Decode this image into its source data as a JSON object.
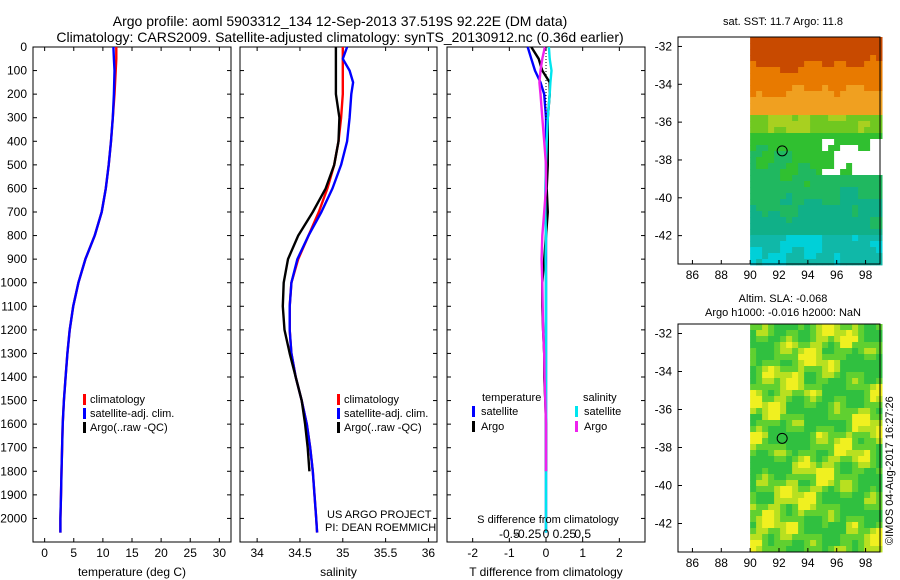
{
  "header": {
    "title_line1": "Argo profile: aoml 5903312_134 12-Sep-2013 37.519S 92.22E (DM data)",
    "title_line2": "Climatology: CARS2009. Satellite-adjusted climatology: synTS_20130912.nc (0.36d earlier)"
  },
  "colors": {
    "climatology": "#ff0000",
    "satellite": "#0000ff",
    "argo": "#000000",
    "salinity_satellite": "#00e5ee",
    "salinity_argo": "#ee22ee"
  },
  "footer": {
    "project": "US ARGO PROJECT",
    "pi": "PI: DEAN ROEMMICH",
    "imos_stamp": "©IMOS 04-Aug-2017 16:27:26"
  },
  "chart_data": [
    {
      "type": "line",
      "id": "temperature",
      "xlabel": "temperature (deg C)",
      "ylabel": "",
      "xlim": [
        -2,
        32
      ],
      "ylim": [
        2100,
        0
      ],
      "xticks": [
        0,
        5,
        10,
        15,
        20,
        25,
        30
      ],
      "xtick_labels": [
        "0",
        "5",
        "10",
        "15",
        "20",
        "25",
        "30"
      ],
      "yticks": [
        0,
        100,
        200,
        300,
        400,
        500,
        600,
        700,
        800,
        900,
        1000,
        1100,
        1200,
        1300,
        1400,
        1500,
        1600,
        1700,
        1800,
        1900,
        2000
      ],
      "legend": [
        "climatology",
        "satellite-adj. clim.",
        "Argo(..raw -QC)"
      ],
      "legend_position": "lower-right",
      "depth": [
        0,
        50,
        100,
        200,
        300,
        400,
        500,
        600,
        700,
        800,
        900,
        1000,
        1100,
        1200,
        1300,
        1400,
        1500,
        1600,
        1700,
        1800,
        1900,
        2000,
        2060
      ],
      "series": [
        {
          "name": "climatology",
          "color_key": "climatology",
          "values": [
            12.3,
            12.3,
            12.2,
            12.0,
            11.7,
            11.4,
            11.0,
            10.5,
            9.8,
            8.6,
            7.0,
            5.8,
            4.9,
            4.3,
            3.9,
            3.6,
            3.3,
            3.1,
            3.0,
            2.9,
            2.8,
            2.7,
            2.7
          ]
        },
        {
          "name": "satellite-adj. clim.",
          "color_key": "satellite",
          "values": [
            11.8,
            11.9,
            12.0,
            11.9,
            11.7,
            11.4,
            11.0,
            10.5,
            9.8,
            8.6,
            7.0,
            5.8,
            4.9,
            4.3,
            3.9,
            3.6,
            3.3,
            3.1,
            3.0,
            2.9,
            2.8,
            2.7,
            2.7
          ]
        }
      ]
    },
    {
      "type": "line",
      "id": "salinity",
      "xlabel": "salinity",
      "ylabel": "",
      "xlim": [
        33.8,
        36.1
      ],
      "ylim": [
        2100,
        0
      ],
      "xticks": [
        34,
        34.5,
        35,
        35.5,
        36
      ],
      "xtick_labels": [
        "34",
        "34.5",
        "35",
        "35.5",
        "36"
      ],
      "legend": [
        "climatology",
        "satellite-adj. clim.",
        "Argo(..raw -QC)"
      ],
      "legend_position": "lower-right",
      "depth": [
        0,
        50,
        100,
        150,
        200,
        300,
        400,
        500,
        600,
        700,
        800,
        900,
        1000,
        1100,
        1200,
        1300,
        1400,
        1500,
        1600,
        1700,
        1800,
        1900,
        2000,
        2060
      ],
      "series": [
        {
          "name": "climatology",
          "color_key": "climatology",
          "values": [
            35.0,
            35.0,
            35.0,
            35.0,
            35.0,
            34.98,
            34.95,
            34.9,
            34.82,
            34.72,
            34.6,
            34.48,
            34.4,
            34.38,
            34.38,
            34.4,
            34.45,
            34.52,
            34.58,
            34.62,
            34.65,
            34.67,
            34.69,
            34.7
          ]
        },
        {
          "name": "satellite-adj. clim.",
          "color_key": "satellite",
          "values": [
            35.05,
            35.0,
            35.08,
            35.12,
            35.1,
            35.08,
            35.05,
            34.98,
            34.88,
            34.75,
            34.6,
            34.47,
            34.4,
            34.38,
            34.38,
            34.4,
            34.45,
            34.52,
            34.58,
            34.62,
            34.65,
            34.67,
            34.69,
            34.7
          ]
        },
        {
          "name": "Argo(..raw -QC)",
          "color_key": "argo",
          "values": [
            34.92,
            34.92,
            34.92,
            34.92,
            34.92,
            34.96,
            34.95,
            34.9,
            34.8,
            34.65,
            34.48,
            34.36,
            34.31,
            34.3,
            34.32,
            34.38,
            34.45,
            34.52,
            34.56,
            34.59,
            34.61,
            null,
            null,
            null
          ]
        }
      ]
    },
    {
      "type": "line",
      "id": "differences",
      "xlabel": "T difference from climatology",
      "xlabel_top": "S difference from climatology",
      "xlim": [
        -2.7,
        2.7
      ],
      "ylim": [
        2100,
        0
      ],
      "xticks": [
        -2,
        -1,
        0,
        1,
        2
      ],
      "xtick_labels": [
        "-2",
        "-1",
        "0",
        "1",
        "2"
      ],
      "sticks": [
        -0.5,
        -0.25,
        0,
        0.25,
        0.5
      ],
      "stick_labels": [
        "-0.5",
        "-0.25",
        "0",
        "0.25",
        "0.5"
      ],
      "legend_titles": [
        "temperature",
        "salinity"
      ],
      "legend": [
        "satellite",
        "Argo",
        "satellite",
        "Argo"
      ],
      "legend_position": "lower-center",
      "depth": [
        0,
        50,
        100,
        150,
        200,
        300,
        400,
        500,
        600,
        700,
        800,
        900,
        1000,
        1100,
        1200,
        1300,
        1400,
        1500,
        1600,
        1700,
        1800,
        1900,
        2000,
        2060
      ],
      "series": [
        {
          "name": "temperature satellite",
          "color_key": "satellite",
          "values": [
            -0.5,
            -0.4,
            -0.3,
            -0.15,
            -0.05,
            0,
            0,
            0,
            0,
            0,
            0,
            0,
            0,
            0,
            0,
            0,
            0,
            0,
            0,
            0,
            0,
            0,
            0,
            0
          ]
        },
        {
          "name": "temperature Argo",
          "color_key": "argo",
          "values": [
            -0.4,
            -0.2,
            -0.1,
            0.1,
            0.1,
            0.05,
            0.05,
            0.05,
            0.02,
            0.05,
            0.0,
            -0.05,
            -0.1,
            -0.1,
            -0.08,
            -0.05,
            -0.05,
            -0.02,
            0,
            0,
            0,
            null,
            null,
            null
          ]
        },
        {
          "name": "salinity satellite",
          "color_key": "salinity_satellite",
          "values": [
            0.08,
            0.1,
            0.15,
            0.12,
            0.1,
            0.05,
            0.02,
            0.0,
            -0.02,
            -0.02,
            0,
            -0.01,
            0,
            0,
            0,
            0,
            0,
            0,
            0,
            0,
            0,
            0,
            0,
            0
          ]
        },
        {
          "name": "salinity Argo",
          "color_key": "salinity_argo",
          "values": [
            -0.03,
            -0.1,
            -0.15,
            -0.18,
            -0.15,
            -0.1,
            -0.05,
            0.0,
            0.0,
            -0.05,
            -0.1,
            -0.12,
            -0.1,
            -0.09,
            -0.08,
            -0.05,
            -0.04,
            -0.02,
            0,
            0,
            0,
            null,
            null,
            null
          ]
        }
      ]
    },
    {
      "type": "heatmap",
      "id": "sst_map",
      "title": "sat. SST: 11.7  Argo: 11.8",
      "xlim": [
        85,
        99
      ],
      "ylim": [
        -43.5,
        -31.5
      ],
      "xticks": [
        86,
        88,
        90,
        92,
        94,
        96,
        98
      ],
      "xtick_labels": [
        "86",
        "88",
        "90",
        "92",
        "94",
        "96",
        "98"
      ],
      "yticks": [
        -32,
        -34,
        -36,
        -38,
        -40,
        -42
      ],
      "ytick_labels": [
        "-32",
        "-34",
        "-36",
        "-38",
        "-40",
        "-42"
      ],
      "data_lon_range": [
        90,
        99
      ],
      "argo_position": [
        92.22,
        -37.519
      ]
    },
    {
      "type": "heatmap",
      "id": "sla_map",
      "title_line1": "Altim. SLA: -0.068",
      "title_line2": "Argo h1000: -0.016 h2000: NaN",
      "xlim": [
        85,
        99
      ],
      "ylim": [
        -43.5,
        -31.5
      ],
      "xticks": [
        86,
        88,
        90,
        92,
        94,
        96,
        98
      ],
      "xtick_labels": [
        "86",
        "88",
        "90",
        "92",
        "94",
        "96",
        "98"
      ],
      "yticks": [
        -32,
        -34,
        -36,
        -38,
        -40,
        -42
      ],
      "ytick_labels": [
        "-32",
        "-34",
        "-36",
        "-38",
        "-40",
        "-42"
      ],
      "data_lon_range": [
        90,
        99
      ],
      "argo_position": [
        92.22,
        -37.519
      ]
    }
  ]
}
